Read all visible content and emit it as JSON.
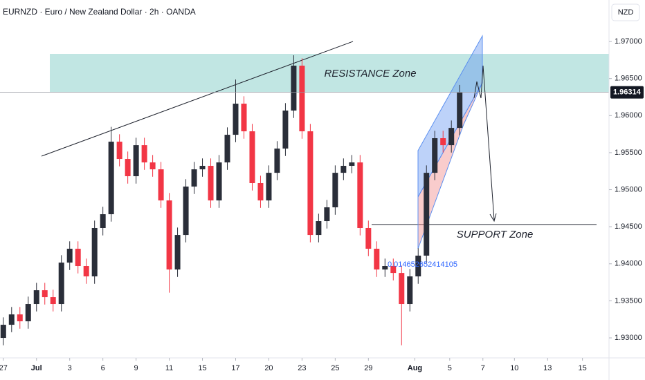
{
  "chart_data": {
    "type": "candlestick",
    "title": "EURNZD · Euro / New Zealand Dollar · 2h · OANDA",
    "currency": "NZD",
    "x": [
      0,
      0.5,
      1,
      1.5,
      2,
      2.5,
      3,
      3.5,
      4,
      4.5,
      5,
      5.5,
      6,
      6.5,
      7,
      7.5,
      8,
      8.5,
      9,
      9.5,
      10,
      10.5,
      11,
      11.5,
      12,
      12.5,
      13,
      13.5,
      14,
      14.5,
      15,
      15.5,
      16,
      16.5,
      17,
      17.5,
      18,
      18.5,
      19,
      19.5,
      20,
      20.5,
      21,
      21.5,
      22,
      22.5,
      23,
      23.5,
      24,
      24.5,
      25,
      25.5,
      26,
      26.5,
      27,
      27.5
    ],
    "open": [
      1.93,
      1.93177,
      1.93317,
      1.93224,
      1.93457,
      1.93643,
      1.9355,
      1.93457,
      1.94016,
      1.94203,
      1.9397,
      1.9383,
      1.94483,
      1.94669,
      1.95648,
      1.95415,
      1.95182,
      1.95601,
      1.95368,
      1.95275,
      1.94855,
      1.93923,
      1.94389,
      1.95042,
      1.95275,
      1.95322,
      1.94855,
      1.95368,
      1.95741,
      1.96161,
      1.95788,
      1.95089,
      1.94855,
      1.95228,
      1.95555,
      1.96068,
      1.96674,
      1.95788,
      1.94389,
      1.94576,
      1.94762,
      1.95228,
      1.95322,
      1.95368,
      1.94483,
      1.94203,
      1.93923,
      1.9397,
      1.93876,
      1.93457,
      1.9383,
      1.9411,
      1.95228,
      1.95695,
      1.95601,
      1.95834
    ],
    "high": [
      1.93277,
      1.93417,
      1.93417,
      1.93557,
      1.93743,
      1.93743,
      1.9365,
      1.94116,
      1.94303,
      1.94303,
      1.9407,
      1.94583,
      1.94769,
      1.95848,
      1.95748,
      1.95515,
      1.95701,
      1.95701,
      1.95468,
      1.95375,
      1.94955,
      1.94489,
      1.95142,
      1.95375,
      1.95422,
      1.95422,
      1.95468,
      1.95841,
      1.96487,
      1.96261,
      1.95888,
      1.95189,
      1.95328,
      1.95655,
      1.96168,
      1.96814,
      1.96774,
      1.95888,
      1.94676,
      1.94862,
      1.95328,
      1.95422,
      1.95468,
      1.95468,
      1.94583,
      1.94303,
      1.9407,
      1.9407,
      1.93976,
      1.9393,
      1.9421,
      1.95328,
      1.95795,
      1.95795,
      1.95934,
      1.96414
    ],
    "low": [
      1.929,
      1.93077,
      1.93124,
      1.93124,
      1.93357,
      1.9345,
      1.93357,
      1.93357,
      1.93916,
      1.9387,
      1.9373,
      1.9373,
      1.94383,
      1.94569,
      1.95315,
      1.95082,
      1.95082,
      1.95268,
      1.95175,
      1.94755,
      1.9361,
      1.93823,
      1.94289,
      1.94942,
      1.95175,
      1.94755,
      1.94755,
      1.95268,
      1.95641,
      1.95688,
      1.94989,
      1.94755,
      1.94755,
      1.95128,
      1.95455,
      1.95968,
      1.95688,
      1.94289,
      1.94289,
      1.94476,
      1.94662,
      1.95128,
      1.95222,
      1.94383,
      1.94103,
      1.93823,
      1.93823,
      1.93776,
      1.929,
      1.93357,
      1.9373,
      1.9401,
      1.95128,
      1.95501,
      1.95501,
      1.95734
    ],
    "close": [
      1.93177,
      1.93317,
      1.93224,
      1.93457,
      1.93643,
      1.9355,
      1.93457,
      1.94016,
      1.94203,
      1.9397,
      1.9383,
      1.94483,
      1.94669,
      1.95648,
      1.95415,
      1.95182,
      1.95601,
      1.95368,
      1.95275,
      1.94855,
      1.93923,
      1.94389,
      1.95042,
      1.95275,
      1.95322,
      1.94855,
      1.95368,
      1.95741,
      1.96161,
      1.95788,
      1.95089,
      1.94855,
      1.95228,
      1.95555,
      1.96068,
      1.96674,
      1.95788,
      1.94389,
      1.94576,
      1.94762,
      1.95228,
      1.95322,
      1.95368,
      1.94483,
      1.94203,
      1.93923,
      1.9397,
      1.93876,
      1.93457,
      1.9383,
      1.9411,
      1.95228,
      1.95695,
      1.95601,
      1.95834,
      1.96314
    ],
    "up_color": "#2a2e39",
    "down_color": "#f23645",
    "ylim": [
      1.9273,
      1.9756
    ],
    "yticks": [
      {
        "value": 1.97,
        "label": "1.97000"
      },
      {
        "value": 1.965,
        "label": "1.96500"
      },
      {
        "value": 1.96,
        "label": "1.96000"
      },
      {
        "value": 1.955,
        "label": "1.95500"
      },
      {
        "value": 1.95,
        "label": "1.95000"
      },
      {
        "value": 1.945,
        "label": "1.94500"
      },
      {
        "value": 1.94,
        "label": "1.94000"
      },
      {
        "value": 1.935,
        "label": "1.93500"
      },
      {
        "value": 1.93,
        "label": "1.93000"
      }
    ],
    "xlim": [
      -0.2,
      36.5
    ],
    "xticks": [
      {
        "value": 0,
        "label": "27"
      },
      {
        "value": 2,
        "label": "Jul"
      },
      {
        "value": 4,
        "label": "3"
      },
      {
        "value": 6,
        "label": "6"
      },
      {
        "value": 8,
        "label": "9"
      },
      {
        "value": 10,
        "label": "11"
      },
      {
        "value": 12,
        "label": "15"
      },
      {
        "value": 14,
        "label": "17"
      },
      {
        "value": 16,
        "label": "20"
      },
      {
        "value": 18,
        "label": "23"
      },
      {
        "value": 20,
        "label": "25"
      },
      {
        "value": 22,
        "label": "29"
      },
      {
        "value": 24.8,
        "label": "Aug"
      },
      {
        "value": 26.9,
        "label": "5"
      },
      {
        "value": 28.9,
        "label": "7"
      },
      {
        "value": 30.8,
        "label": "10"
      },
      {
        "value": 32.8,
        "label": "13"
      },
      {
        "value": 34.9,
        "label": "15"
      }
    ],
    "annotations": [
      "RESISTANCE Zone",
      "SUPPORT Zone",
      "0.014652652414105"
    ],
    "grid": false
  }
}
